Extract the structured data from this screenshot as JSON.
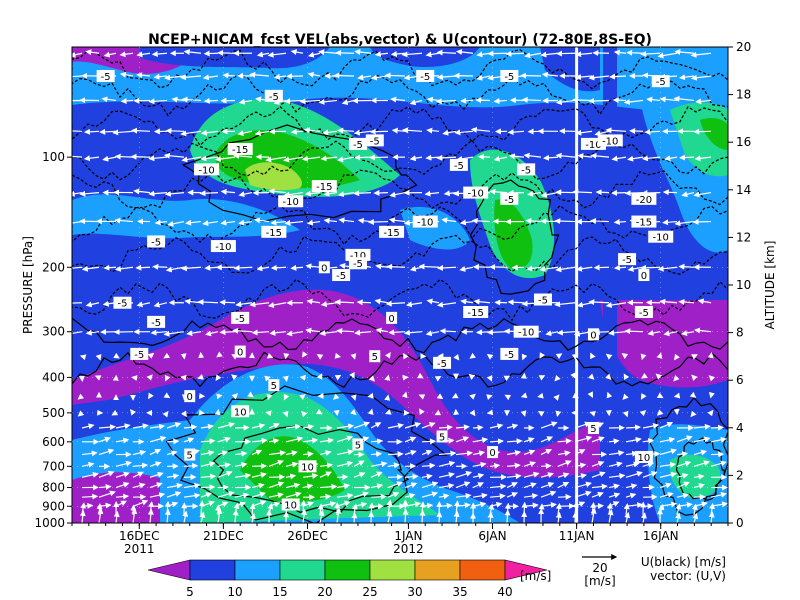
{
  "chart_data": {
    "type": "heatmap",
    "title": "NCEP+NICAM_fcst VEL(abs,vector) & U(contour)   (72-80E,8S-EQ)",
    "left_axis": {
      "label": "PRESSURE [hPa]",
      "scale": "log",
      "range": [
        1000,
        50
      ],
      "ticks": [
        100,
        200,
        300,
        400,
        500,
        600,
        700,
        800,
        900,
        1000
      ],
      "tick_labels": [
        "100",
        "200",
        "300",
        "400",
        "500",
        "600",
        "700",
        "800",
        "900",
        "1000"
      ]
    },
    "right_axis": {
      "label": "ALTITUDE [km]",
      "range": [
        0,
        20
      ],
      "ticks": [
        0,
        2,
        4,
        6,
        8,
        10,
        12,
        14,
        16,
        18,
        20
      ],
      "tick_labels": [
        "0",
        "2",
        "4",
        "6",
        "8",
        "10",
        "12",
        "14",
        "16",
        "18",
        "20"
      ]
    },
    "x_axis": {
      "range": [
        "2011-12-12",
        "2012-01-20"
      ],
      "tick_labels": [
        {
          "date": "2011-12-16",
          "label": "16DEC"
        },
        {
          "date": "2011-12-21",
          "label": "21DEC"
        },
        {
          "date": "2011-12-26",
          "label": "26DEC"
        },
        {
          "date": "2012-01-01",
          "label": "1JAN"
        },
        {
          "date": "2012-01-06",
          "label": "6JAN"
        },
        {
          "date": "2012-01-11",
          "label": "11JAN"
        },
        {
          "date": "2012-01-16",
          "label": "16JAN"
        }
      ],
      "year_labels": [
        {
          "date": "2011-12-16",
          "label": "2011"
        },
        {
          "date": "2012-01-01",
          "label": "2012"
        }
      ]
    },
    "forecast_start": "2012-01-11",
    "colorbar": {
      "unit": "[m/s]",
      "levels": [
        5,
        10,
        15,
        20,
        25,
        30,
        35,
        40
      ],
      "level_labels": [
        "5",
        "10",
        "15",
        "20",
        "25",
        "30",
        "35",
        "40"
      ],
      "colors": [
        "#a020c8",
        "#2040e0",
        "#1ca0ff",
        "#20d890",
        "#10c010",
        "#a0e040",
        "#e8a020",
        "#f06010",
        "#f020a0"
      ]
    },
    "vector_reference": {
      "value": "20",
      "unit": "[m/s]"
    },
    "legend_text": [
      "U(black) [m/s]",
      "vector: (U,V)"
    ],
    "contour_labels": [
      {
        "date": "2011-12-14",
        "pressure": 60,
        "value": "-5"
      },
      {
        "date": "2011-12-22",
        "pressure": 95,
        "value": "-15"
      },
      {
        "date": "2011-12-20",
        "pressure": 108,
        "value": "-10"
      },
      {
        "date": "2011-12-24",
        "pressure": 68,
        "value": "-5"
      },
      {
        "date": "2011-12-25",
        "pressure": 132,
        "value": "-10"
      },
      {
        "date": "2011-12-27",
        "pressure": 120,
        "value": "-15"
      },
      {
        "date": "2011-12-24",
        "pressure": 160,
        "value": "-15"
      },
      {
        "date": "2011-12-21",
        "pressure": 175,
        "value": "-10"
      },
      {
        "date": "2011-12-17",
        "pressure": 170,
        "value": "-5"
      },
      {
        "date": "2011-12-29",
        "pressure": 92,
        "value": "-5"
      },
      {
        "date": "2011-12-30",
        "pressure": 90,
        "value": "-5"
      },
      {
        "date": "2012-01-02",
        "pressure": 60,
        "value": "-5"
      },
      {
        "date": "2012-01-04",
        "pressure": 105,
        "value": "-5"
      },
      {
        "date": "2012-01-05",
        "pressure": 125,
        "value": "-10"
      },
      {
        "date": "2012-01-07",
        "pressure": 130,
        "value": "-5"
      },
      {
        "date": "2012-01-08",
        "pressure": 108,
        "value": "-5"
      },
      {
        "date": "2012-01-07",
        "pressure": 60,
        "value": "-5"
      },
      {
        "date": "2012-01-02",
        "pressure": 150,
        "value": "-10"
      },
      {
        "date": "2011-12-31",
        "pressure": 160,
        "value": "-15"
      },
      {
        "date": "2011-12-29",
        "pressure": 185,
        "value": "-10"
      },
      {
        "date": "2011-12-29",
        "pressure": 195,
        "value": "-5"
      },
      {
        "date": "2011-12-27",
        "pressure": 200,
        "value": "0"
      },
      {
        "date": "2011-12-28",
        "pressure": 210,
        "value": "-5"
      },
      {
        "date": "2011-12-15",
        "pressure": 250,
        "value": "-5"
      },
      {
        "date": "2011-12-17",
        "pressure": 282,
        "value": "-5"
      },
      {
        "date": "2011-12-22",
        "pressure": 275,
        "value": "-5"
      },
      {
        "date": "2011-12-31",
        "pressure": 275,
        "value": "0"
      },
      {
        "date": "2012-01-05",
        "pressure": 265,
        "value": "-15"
      },
      {
        "date": "2012-01-09",
        "pressure": 245,
        "value": "-5"
      },
      {
        "date": "2012-01-08",
        "pressure": 300,
        "value": "-10"
      },
      {
        "date": "2011-12-16",
        "pressure": 345,
        "value": "-5"
      },
      {
        "date": "2011-12-22",
        "pressure": 340,
        "value": "0"
      },
      {
        "date": "2011-12-30",
        "pressure": 350,
        "value": "5"
      },
      {
        "date": "2012-01-03",
        "pressure": 365,
        "value": "-5"
      },
      {
        "date": "2012-01-07",
        "pressure": 345,
        "value": "-5"
      },
      {
        "date": "2011-12-19",
        "pressure": 450,
        "value": "0"
      },
      {
        "date": "2011-12-24",
        "pressure": 420,
        "value": "5"
      },
      {
        "date": "2011-12-22",
        "pressure": 495,
        "value": "10"
      },
      {
        "date": "2011-12-19",
        "pressure": 650,
        "value": "5"
      },
      {
        "date": "2011-12-26",
        "pressure": 700,
        "value": "10"
      },
      {
        "date": "2011-12-29",
        "pressure": 610,
        "value": "5"
      },
      {
        "date": "2012-01-03",
        "pressure": 580,
        "value": "5"
      },
      {
        "date": "2012-01-06",
        "pressure": 640,
        "value": "0"
      },
      {
        "date": "2011-12-25",
        "pressure": 890,
        "value": "10"
      },
      {
        "date": "2012-01-12",
        "pressure": 92,
        "value": "-10"
      },
      {
        "date": "2012-01-13",
        "pressure": 90,
        "value": "-10"
      },
      {
        "date": "2012-01-16",
        "pressure": 62,
        "value": "-5"
      },
      {
        "date": "2012-01-15",
        "pressure": 130,
        "value": "-20"
      },
      {
        "date": "2012-01-15",
        "pressure": 150,
        "value": "-15"
      },
      {
        "date": "2012-01-16",
        "pressure": 165,
        "value": "-10"
      },
      {
        "date": "2012-01-14",
        "pressure": 190,
        "value": "-5"
      },
      {
        "date": "2012-01-15",
        "pressure": 210,
        "value": "0"
      },
      {
        "date": "2012-01-15",
        "pressure": 265,
        "value": "-5"
      },
      {
        "date": "2012-01-12",
        "pressure": 305,
        "value": "0"
      },
      {
        "date": "2012-01-12",
        "pressure": 550,
        "value": "5"
      },
      {
        "date": "2012-01-15",
        "pressure": 660,
        "value": "10"
      }
    ]
  }
}
